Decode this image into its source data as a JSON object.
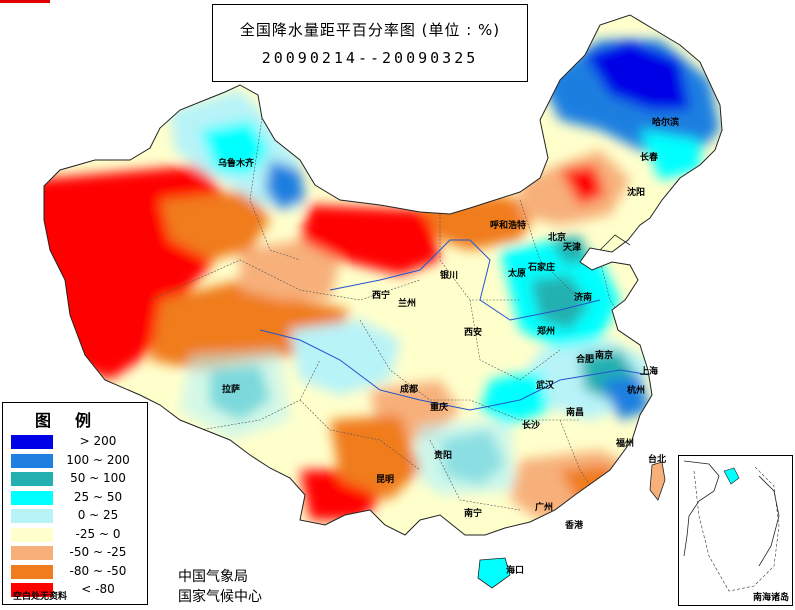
{
  "title": {
    "main": "全国降水量距平百分率图 (单位 : %)",
    "dates": "20090214--20090325"
  },
  "legend": {
    "heading": "图例",
    "items": [
      {
        "range": "> 200",
        "color": "#0000e6"
      },
      {
        "range": "100 ~ 200",
        "color": "#1f7fe0"
      },
      {
        "range": "50 ~ 100",
        "color": "#22b0b0"
      },
      {
        "range": "25 ~ 50",
        "color": "#00ffff"
      },
      {
        "range": "0 ~ 25",
        "color": "#b8f3f8"
      },
      {
        "range": "-25 ~ 0",
        "color": "#ffffcc"
      },
      {
        "range": "-50 ~ -25",
        "color": "#f7b07a"
      },
      {
        "range": "-80 ~ -50",
        "color": "#f07c1e"
      },
      {
        "range": "< -80",
        "color": "#ff0000"
      }
    ],
    "note": "空白处无资料"
  },
  "agency": {
    "line1": "中国气象局",
    "line2": "国家气候中心"
  },
  "inset": {
    "label": "南海诸岛"
  },
  "cities": {
    "wulumuqi": "乌鲁木齐",
    "haerbin": "哈尔滨",
    "changchun": "长春",
    "shenyang": "沈阳",
    "huhehaote": "呼和浩特",
    "beijing": "北京",
    "tianjin": "天津",
    "shijiazhuang": "石家庄",
    "taiyuan": "太原",
    "jinan": "济南",
    "yinchuan": "银川",
    "xining": "西宁",
    "lanzhou": "兰州",
    "xian": "西安",
    "zhengzhou": "郑州",
    "hefei": "合肥",
    "nanjing": "南京",
    "shanghai": "上海",
    "lasa": "拉萨",
    "chengdu": "成都",
    "chongqing": "重庆",
    "wuhan": "武汉",
    "hangzhou": "杭州",
    "nanchang": "南昌",
    "changsha": "长沙",
    "fuzhou": "福州",
    "guiyang": "贵阳",
    "kunming": "昆明",
    "nanning": "南宁",
    "guangzhou": "广州",
    "xianggang": "香港",
    "taibei": "台北",
    "haikou": "海口"
  }
}
